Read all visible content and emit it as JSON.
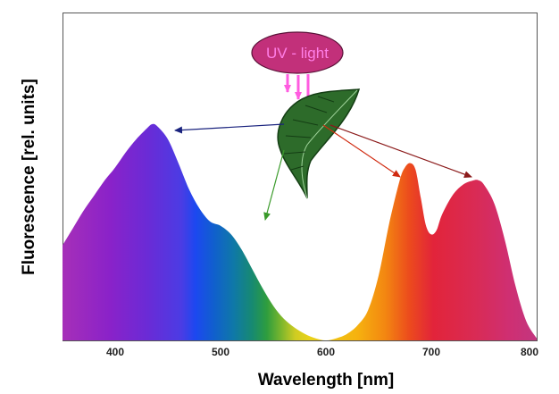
{
  "chart_data": {
    "type": "area",
    "xlabel": "Wavelength [nm]",
    "ylabel": "Fluorescence [rel. units]",
    "xlim": [
      350,
      800
    ],
    "ylim": [
      0,
      1
    ],
    "x_ticks": [
      400,
      500,
      600,
      700,
      800
    ],
    "grid": false,
    "series": [
      {
        "x": [
          350,
          360,
          370,
          380,
          390,
          400,
          410,
          420,
          430,
          435,
          440,
          450,
          460,
          470,
          480,
          490,
          500,
          510,
          520,
          530,
          540,
          550,
          560,
          570,
          580,
          590,
          600,
          610,
          620,
          630,
          640,
          650,
          660,
          670,
          675,
          680,
          685,
          690,
          695,
          700,
          705,
          710,
          720,
          730,
          740,
          745,
          750,
          760,
          770,
          780,
          790,
          800
        ],
        "values": [
          0.44,
          0.52,
          0.6,
          0.67,
          0.74,
          0.8,
          0.87,
          0.93,
          0.98,
          1.0,
          0.99,
          0.93,
          0.82,
          0.7,
          0.61,
          0.55,
          0.53,
          0.49,
          0.42,
          0.33,
          0.24,
          0.16,
          0.1,
          0.06,
          0.03,
          0.01,
          0.0,
          0.01,
          0.03,
          0.07,
          0.14,
          0.3,
          0.54,
          0.74,
          0.8,
          0.82,
          0.79,
          0.66,
          0.53,
          0.49,
          0.51,
          0.58,
          0.67,
          0.72,
          0.74,
          0.74,
          0.72,
          0.63,
          0.46,
          0.25,
          0.09,
          0.01
        ]
      }
    ],
    "annotations": [
      {
        "text": "UV - light"
      }
    ],
    "colors": {
      "uv_ellipse": "#c2307a",
      "uv_text": "#ff7fe8",
      "uv_arrows": "#ff5ce0",
      "arrow_blue": "#1a237e",
      "arrow_green": "#3a9a2a",
      "arrow_red": "#d02a10",
      "arrow_darkred": "#8b1a1a",
      "leaf": "#2d6b2a",
      "leaf_dark": "#143d14"
    },
    "icons": [
      "leaf-icon"
    ]
  }
}
